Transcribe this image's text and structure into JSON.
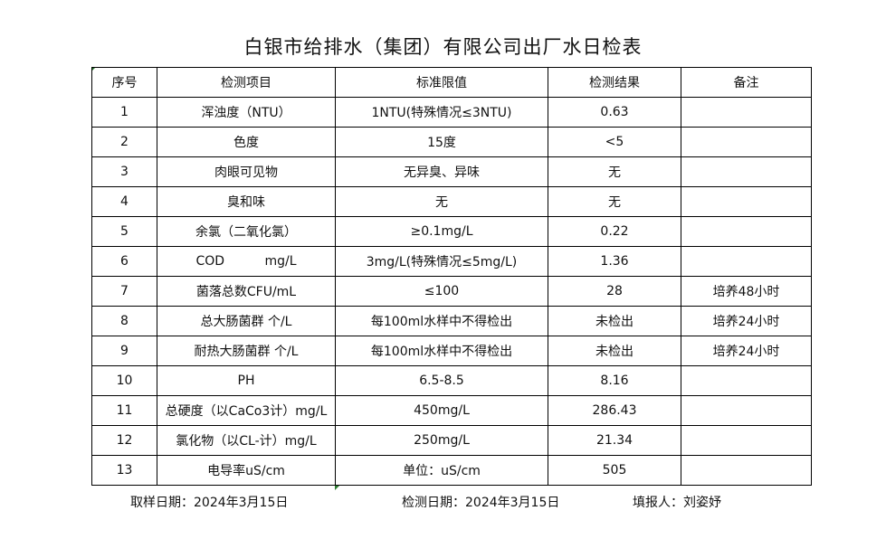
{
  "title": "白银市给排水（集团）有限公司出厂水日检表",
  "headers": [
    "序号",
    "检测项目",
    "标准限值",
    "检测结果",
    "备注"
  ],
  "rows": [
    [
      "1",
      "浑浊度（NTU）",
      "1NTU(特殊情况≤3NTU)",
      "0.63",
      ""
    ],
    [
      "2",
      "色度",
      "15度",
      "<5",
      ""
    ],
    [
      "3",
      "肉眼可见物",
      "无异臭、异味",
      "无",
      ""
    ],
    [
      "4",
      "臭和味",
      "无",
      "无",
      ""
    ],
    [
      "5",
      "余氯（二氧化氯）",
      "≥0.1mg/L",
      "0.22",
      ""
    ],
    [
      "6",
      "COD          mg/L",
      "3mg/L(特殊情况≤5mg/L)",
      "1.36",
      ""
    ],
    [
      "7",
      "菌落总数CFU/mL",
      "≤100",
      "28",
      "培养48小时"
    ],
    [
      "8",
      "总大肠菌群 个/L",
      "每100ml水样中不得检出",
      "未检出",
      "培养24小时"
    ],
    [
      "9",
      "耐热大肠菌群 个/L",
      "每100ml水样中不得检出",
      "未检出",
      "培养24小时"
    ],
    [
      "10",
      "PH",
      "6.5-8.5",
      "8.16",
      ""
    ],
    [
      "11",
      "总硬度（以CaCo3计）mg/L",
      "450mg/L",
      "286.43",
      ""
    ],
    [
      "12",
      "氯化物（以CL-计）mg/L",
      "250mg/L",
      "21.34",
      ""
    ],
    [
      "13",
      "电导率uS/cm",
      "单位：uS/cm",
      "505",
      ""
    ]
  ],
  "footer": {
    "sample_date": "取样日期：2024年3月15日",
    "test_date": "检测日期：2024年3月15日",
    "reporter": "填报人：刘姿妤"
  }
}
